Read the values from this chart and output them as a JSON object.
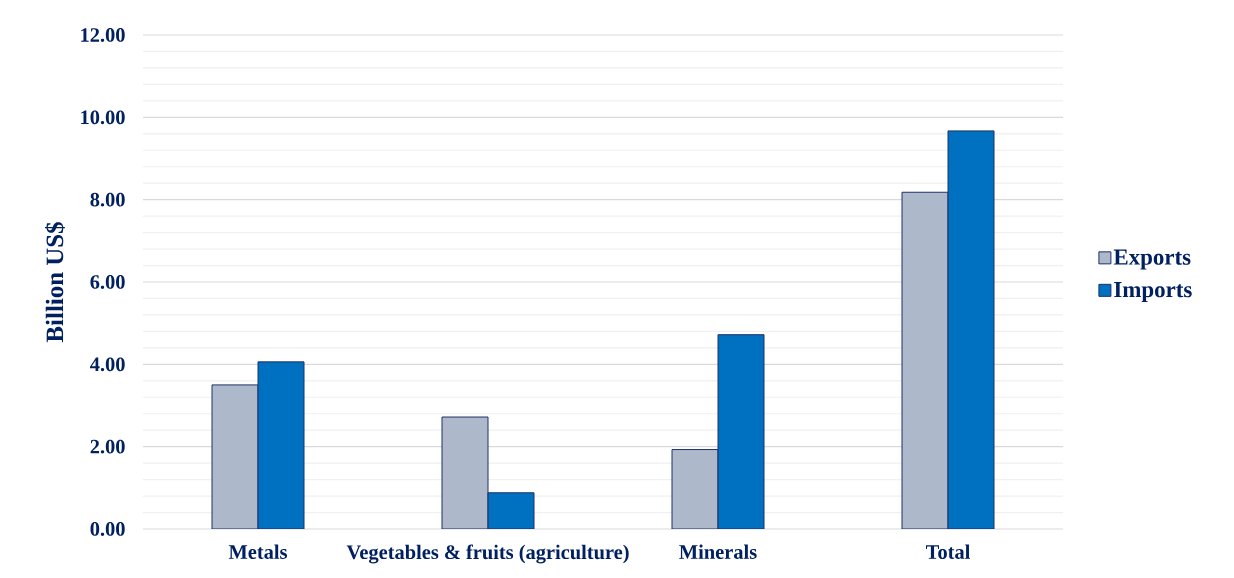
{
  "chart_data": {
    "type": "bar",
    "ylabel": "Billion US$",
    "categories": [
      "Metals",
      "Vegetables & fruits (agriculture)",
      "Minerals",
      "Total"
    ],
    "series": [
      {
        "name": "Exports",
        "color": "#adb9ca",
        "values": [
          3.5,
          2.72,
          1.93,
          8.18
        ]
      },
      {
        "name": "Imports",
        "color": "#0070c0",
        "values": [
          4.06,
          0.88,
          4.72,
          9.67
        ]
      }
    ],
    "ylim": [
      0,
      12
    ],
    "yticks": [
      {
        "value": 0,
        "label": "0.00"
      },
      {
        "value": 0.4,
        "label": null
      },
      {
        "value": 0.8,
        "label": null
      },
      {
        "value": 1.2,
        "label": null
      },
      {
        "value": 1.6,
        "label": null
      },
      {
        "value": 2,
        "label": "2.00"
      },
      {
        "value": 2.4,
        "label": null
      },
      {
        "value": 2.8,
        "label": null
      },
      {
        "value": 3.2,
        "label": null
      },
      {
        "value": 3.6,
        "label": null
      },
      {
        "value": 4,
        "label": "4.00"
      },
      {
        "value": 4.4,
        "label": null
      },
      {
        "value": 4.8,
        "label": null
      },
      {
        "value": 5.2,
        "label": null
      },
      {
        "value": 5.6,
        "label": null
      },
      {
        "value": 6,
        "label": "6.00"
      },
      {
        "value": 6.4,
        "label": null
      },
      {
        "value": 6.8,
        "label": null
      },
      {
        "value": 7.2,
        "label": null
      },
      {
        "value": 7.6,
        "label": null
      },
      {
        "value": 8,
        "label": "8.00"
      },
      {
        "value": 8.4,
        "label": null
      },
      {
        "value": 8.8,
        "label": null
      },
      {
        "value": 9.2,
        "label": null
      },
      {
        "value": 9.6,
        "label": null
      },
      {
        "value": 10,
        "label": "10.00"
      },
      {
        "value": 10.4,
        "label": null
      },
      {
        "value": 10.8,
        "label": null
      },
      {
        "value": 11.2,
        "label": null
      },
      {
        "value": 11.6,
        "label": null
      },
      {
        "value": 12,
        "label": "12.00"
      }
    ],
    "grid": "y",
    "legend": "right"
  }
}
